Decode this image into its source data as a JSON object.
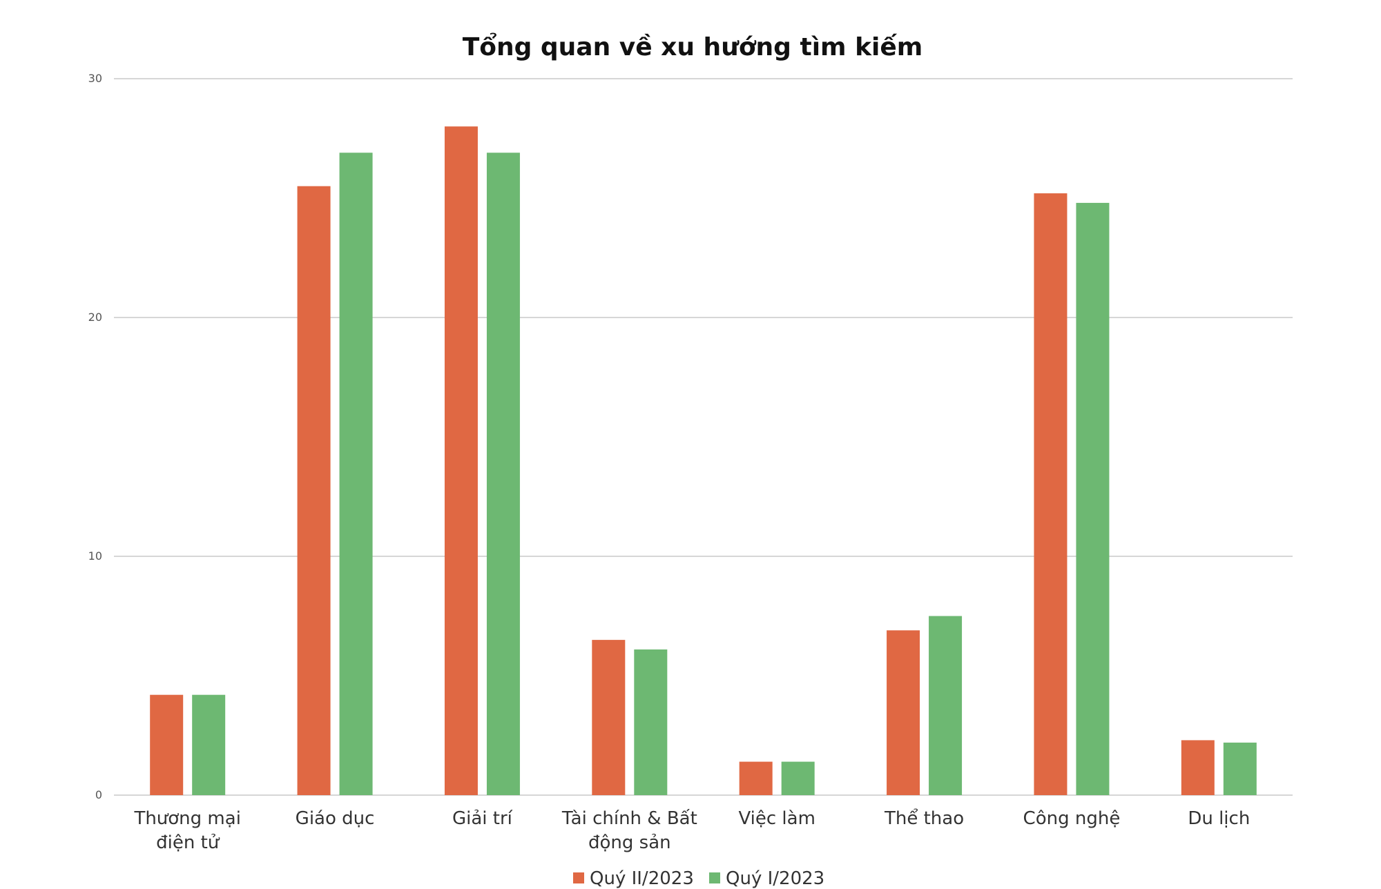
{
  "chart_data": {
    "type": "bar",
    "title": "Tổng quan về xu hướng tìm kiếm",
    "xlabel": "",
    "ylabel": "",
    "ylim": [
      0,
      30
    ],
    "yticks": [
      0,
      10,
      20,
      30
    ],
    "grid": true,
    "legend_position": "bottom",
    "categories": [
      [
        "Thương mại",
        "điện tử"
      ],
      [
        "Giáo dục"
      ],
      [
        "Giải trí"
      ],
      [
        "Tài chính & Bất",
        "động sản"
      ],
      [
        "Việc làm"
      ],
      [
        "Thể thao"
      ],
      [
        "Công nghệ"
      ],
      [
        "Du lịch"
      ]
    ],
    "series": [
      {
        "name": "Quý II/2023",
        "color": "#E06843",
        "values": [
          4.2,
          25.5,
          28.0,
          6.5,
          1.4,
          6.9,
          25.2,
          2.3
        ]
      },
      {
        "name": "Quý I/2023",
        "color": "#6DB872",
        "values": [
          4.2,
          26.9,
          26.9,
          6.1,
          1.4,
          7.5,
          24.8,
          2.2
        ]
      }
    ]
  }
}
